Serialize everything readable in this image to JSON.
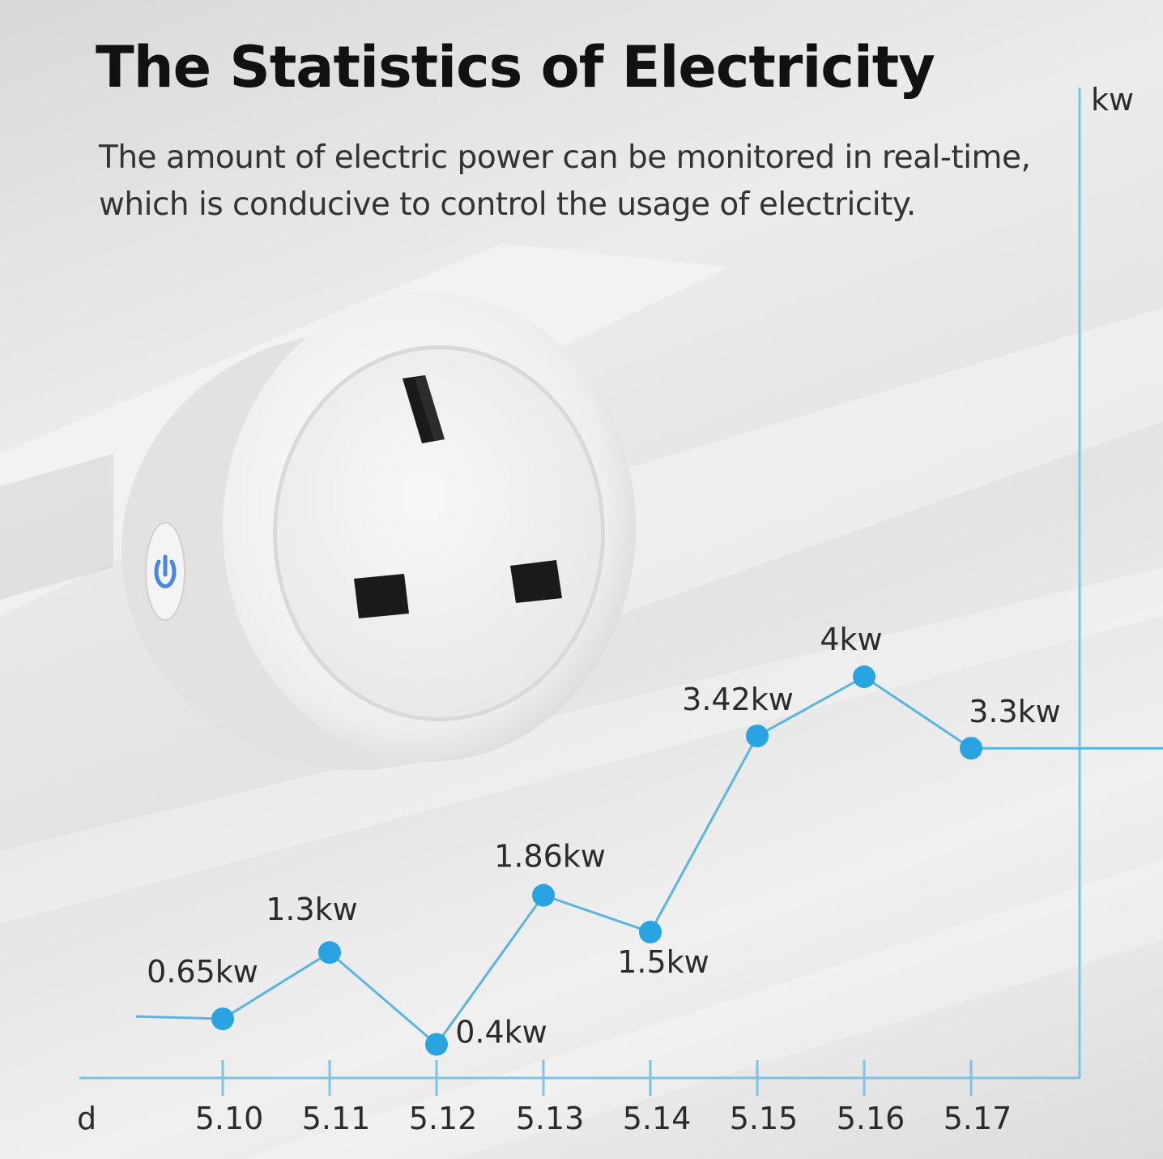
{
  "header": {
    "title": "The Statistics of Electricity",
    "subtitle_line1": "The amount of electric power can be monitored in real-time,",
    "subtitle_line2": "which is conducive to control the usage of electricity."
  },
  "colors": {
    "line": "#5ab4e4",
    "point": "#2aa3e2",
    "axis": "#7cc3ea",
    "text": "#2b2b2b"
  },
  "product": {
    "name": "uk-smart-plug",
    "icons": [
      "power-icon"
    ]
  },
  "chart_data": {
    "type": "line",
    "xlabel": "d",
    "ylabel": "kw",
    "categories": [
      "5.10",
      "5.11",
      "5.12",
      "5.13",
      "5.14",
      "5.15",
      "5.16",
      "5.17"
    ],
    "series": [
      {
        "values": [
          0.65,
          1.3,
          0.4,
          1.86,
          1.5,
          3.42,
          4,
          3.3
        ],
        "labels": [
          "0.65kw",
          "1.3kw",
          "0.4kw",
          "1.86kw",
          "1.5kw",
          "3.42kw",
          "4kw",
          "3.3kw"
        ]
      }
    ],
    "ylim": [
      0,
      4.6
    ],
    "grid": false,
    "legend": "none"
  }
}
